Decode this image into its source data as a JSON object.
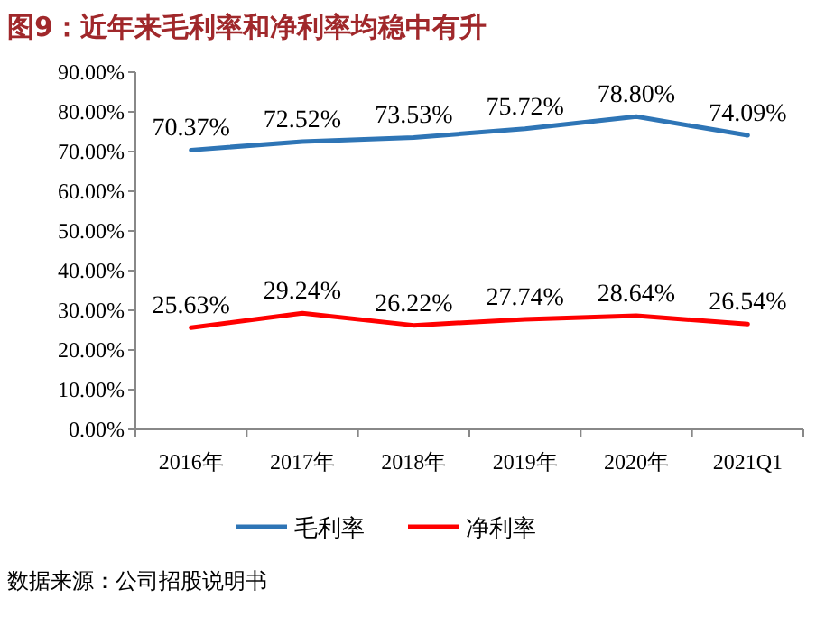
{
  "chart_data": {
    "type": "line",
    "title": "图9：近年来毛利率和净利率均稳中有升",
    "categories": [
      "2016年",
      "2017年",
      "2018年",
      "2019年",
      "2020年",
      "2021Q1"
    ],
    "series": [
      {
        "name": "毛利率",
        "color": "#2e75b6",
        "values": [
          70.37,
          72.52,
          73.53,
          75.72,
          78.8,
          74.09
        ],
        "value_labels": [
          "70.37%",
          "72.52%",
          "73.53%",
          "75.72%",
          "78.80%",
          "74.09%"
        ]
      },
      {
        "name": "净利率",
        "color": "#ff0000",
        "values": [
          25.63,
          29.24,
          26.22,
          27.74,
          28.64,
          26.54
        ],
        "value_labels": [
          "25.63%",
          "29.24%",
          "26.22%",
          "27.74%",
          "28.64%",
          "26.54%"
        ]
      }
    ],
    "ylim": [
      0,
      90
    ],
    "yticks": [
      {
        "value": 0,
        "label": "0.00%"
      },
      {
        "value": 10,
        "label": "10.00%"
      },
      {
        "value": 20,
        "label": "20.00%"
      },
      {
        "value": 30,
        "label": "30.00%"
      },
      {
        "value": 40,
        "label": "40.00%"
      },
      {
        "value": 50,
        "label": "50.00%"
      },
      {
        "value": 60,
        "label": "60.00%"
      },
      {
        "value": 70,
        "label": "70.00%"
      },
      {
        "value": 80,
        "label": "80.00%"
      },
      {
        "value": 90,
        "label": "90.00%"
      }
    ],
    "legend": "bottom",
    "annotations": [
      "数据来源：公司招股说明书"
    ]
  }
}
